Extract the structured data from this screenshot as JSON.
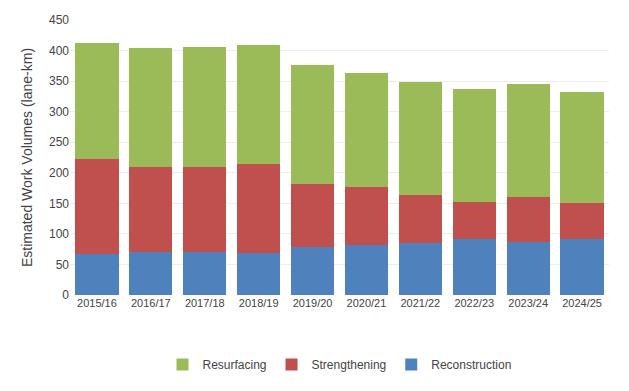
{
  "chart_data": {
    "type": "bar",
    "stacked": true,
    "categories": [
      "2015/16",
      "2016/17",
      "2017/18",
      "2018/19",
      "2019/20",
      "2020/21",
      "2021/22",
      "2022/23",
      "2023/24",
      "2024/25"
    ],
    "series": [
      {
        "name": "Reconstruction",
        "color": "#4f81bd",
        "values": [
          67,
          71,
          71,
          69,
          78,
          82,
          85,
          91,
          87,
          91
        ]
      },
      {
        "name": "Strengthening",
        "color": "#c0504d",
        "values": [
          155,
          139,
          139,
          146,
          104,
          95,
          79,
          61,
          74,
          59
        ]
      },
      {
        "name": "Resurfacing",
        "color": "#9bbb59",
        "values": [
          191,
          194,
          196,
          194,
          195,
          186,
          184,
          185,
          185,
          183
        ]
      }
    ],
    "ylabel": "Estimated Work Volumes (lane-km)",
    "ylim": [
      0,
      450
    ],
    "yticks": [
      0,
      50,
      100,
      150,
      200,
      250,
      300,
      350,
      400,
      450
    ],
    "grid": true,
    "legend": "bottom"
  }
}
